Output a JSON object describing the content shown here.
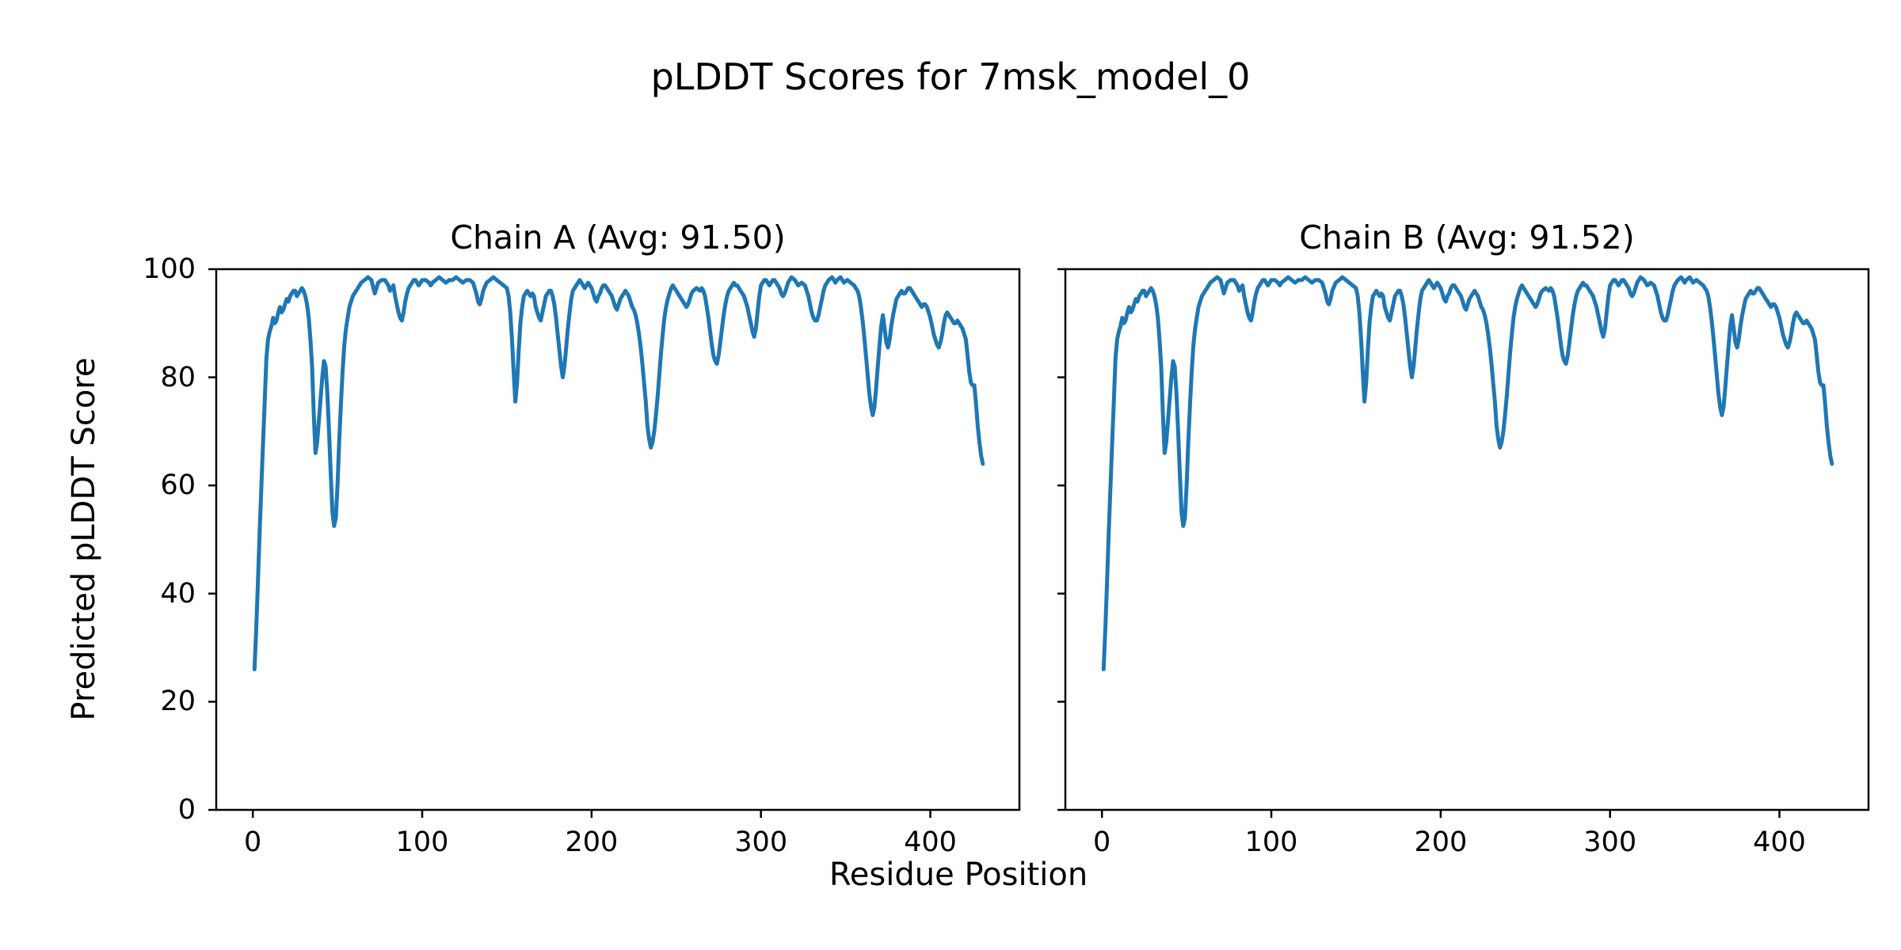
{
  "figure": {
    "title": "pLDDT Scores for 7msk_model_0",
    "xlabel": "Residue Position",
    "ylabel": "Predicted pLDDT Score",
    "background_color": "#ffffff",
    "text_color": "#000000",
    "line_color": "#1f77b4",
    "spine_color": "#000000"
  },
  "chart_data": [
    {
      "type": "line",
      "title": "Chain A (Avg: 91.50)",
      "avg": 91.5,
      "xlim": [
        -21.6,
        452.6
      ],
      "ylim": [
        0,
        100
      ],
      "xticks": [
        0,
        100,
        200,
        300,
        400
      ],
      "yticks": [
        0,
        20,
        40,
        60,
        80,
        100
      ],
      "y_tick_labels_visible": true,
      "grid": false,
      "legend": "none",
      "series_key": "plddt_trace"
    },
    {
      "type": "line",
      "title": "Chain B (Avg: 91.52)",
      "avg": 91.52,
      "xlim": [
        -21.6,
        452.6
      ],
      "ylim": [
        0,
        100
      ],
      "xticks": [
        0,
        100,
        200,
        300,
        400
      ],
      "yticks": [
        0,
        20,
        40,
        60,
        80,
        100
      ],
      "y_tick_labels_visible": false,
      "grid": false,
      "legend": "none",
      "series_key": "plddt_trace"
    }
  ],
  "plddt_trace": {
    "name": "pLDDT per residue",
    "points": [
      [
        1,
        26
      ],
      [
        2,
        33.5
      ],
      [
        3,
        42
      ],
      [
        4,
        51
      ],
      [
        5,
        59.5
      ],
      [
        6,
        67.5
      ],
      [
        7,
        75.5
      ],
      [
        8,
        83.5
      ],
      [
        9,
        87
      ],
      [
        10,
        88.5
      ],
      [
        11,
        89.5
      ],
      [
        12,
        91
      ],
      [
        13,
        90
      ],
      [
        14,
        90.5
      ],
      [
        15,
        92
      ],
      [
        16,
        93
      ],
      [
        17,
        92
      ],
      [
        18,
        92.5
      ],
      [
        19,
        93.5
      ],
      [
        20,
        94.5
      ],
      [
        21,
        94
      ],
      [
        22,
        95
      ],
      [
        23,
        95.5
      ],
      [
        24,
        96
      ],
      [
        25,
        96
      ],
      [
        26,
        95
      ],
      [
        27,
        95.5
      ],
      [
        28,
        96
      ],
      [
        29,
        96.5
      ],
      [
        30,
        96
      ],
      [
        31,
        95
      ],
      [
        32,
        93.5
      ],
      [
        33,
        91
      ],
      [
        34,
        87
      ],
      [
        35,
        82
      ],
      [
        36,
        73
      ],
      [
        37,
        66
      ],
      [
        38,
        68
      ],
      [
        39,
        72
      ],
      [
        40,
        76
      ],
      [
        41,
        80
      ],
      [
        42,
        83
      ],
      [
        43,
        82
      ],
      [
        44,
        77
      ],
      [
        45,
        70
      ],
      [
        46,
        62
      ],
      [
        47,
        55
      ],
      [
        48,
        52.5
      ],
      [
        49,
        54
      ],
      [
        50,
        60
      ],
      [
        51,
        68
      ],
      [
        52,
        75
      ],
      [
        53,
        81
      ],
      [
        54,
        86
      ],
      [
        55,
        89
      ],
      [
        56,
        91
      ],
      [
        57,
        93
      ],
      [
        58,
        94
      ],
      [
        59,
        95
      ],
      [
        60,
        95.5
      ],
      [
        62,
        96.5
      ],
      [
        64,
        97.5
      ],
      [
        66,
        98
      ],
      [
        68,
        98.5
      ],
      [
        70,
        98
      ],
      [
        72,
        95.5
      ],
      [
        73,
        96.5
      ],
      [
        74,
        97.5
      ],
      [
        76,
        98
      ],
      [
        78,
        98
      ],
      [
        80,
        97
      ],
      [
        81,
        96
      ],
      [
        82,
        96.5
      ],
      [
        83,
        97
      ],
      [
        84,
        95
      ],
      [
        85,
        93.5
      ],
      [
        86,
        92
      ],
      [
        87,
        91
      ],
      [
        88,
        90.5
      ],
      [
        89,
        92
      ],
      [
        90,
        94
      ],
      [
        91,
        95.5
      ],
      [
        92,
        96.5
      ],
      [
        93,
        97
      ],
      [
        94,
        97.5
      ],
      [
        95,
        98
      ],
      [
        96,
        98
      ],
      [
        97,
        97.5
      ],
      [
        98,
        97
      ],
      [
        99,
        97.5
      ],
      [
        100,
        98
      ],
      [
        102,
        98
      ],
      [
        104,
        97.5
      ],
      [
        105,
        97
      ],
      [
        106,
        97.5
      ],
      [
        108,
        98
      ],
      [
        110,
        98.5
      ],
      [
        112,
        98
      ],
      [
        114,
        97.5
      ],
      [
        116,
        98
      ],
      [
        118,
        98
      ],
      [
        120,
        98.5
      ],
      [
        122,
        98
      ],
      [
        124,
        97.5
      ],
      [
        126,
        98
      ],
      [
        128,
        98
      ],
      [
        130,
        97.5
      ],
      [
        132,
        95.5
      ],
      [
        133,
        94
      ],
      [
        134,
        93.5
      ],
      [
        135,
        94.5
      ],
      [
        136,
        96
      ],
      [
        138,
        97.5
      ],
      [
        140,
        98
      ],
      [
        142,
        98.5
      ],
      [
        144,
        98
      ],
      [
        146,
        97.5
      ],
      [
        148,
        97
      ],
      [
        150,
        96.5
      ],
      [
        151,
        95
      ],
      [
        152,
        92
      ],
      [
        153,
        87
      ],
      [
        154,
        81
      ],
      [
        155,
        75.5
      ],
      [
        156,
        79
      ],
      [
        157,
        85
      ],
      [
        158,
        90
      ],
      [
        159,
        93
      ],
      [
        160,
        95
      ],
      [
        161,
        95.5
      ],
      [
        162,
        96
      ],
      [
        163,
        95.5
      ],
      [
        164,
        95
      ],
      [
        165,
        95.5
      ],
      [
        166,
        95
      ],
      [
        167,
        93
      ],
      [
        168,
        92
      ],
      [
        169,
        91
      ],
      [
        170,
        90.5
      ],
      [
        171,
        92
      ],
      [
        172,
        93.5
      ],
      [
        173,
        95
      ],
      [
        174,
        95.5
      ],
      [
        175,
        96
      ],
      [
        176,
        96
      ],
      [
        177,
        95
      ],
      [
        178,
        93.5
      ],
      [
        179,
        91
      ],
      [
        180,
        88
      ],
      [
        181,
        85
      ],
      [
        182,
        82
      ],
      [
        183,
        80
      ],
      [
        184,
        82
      ],
      [
        185,
        85.5
      ],
      [
        186,
        89
      ],
      [
        187,
        92
      ],
      [
        188,
        94.5
      ],
      [
        189,
        96
      ],
      [
        190,
        96.5
      ],
      [
        191,
        97
      ],
      [
        192,
        97.5
      ],
      [
        193,
        98
      ],
      [
        194,
        97.5
      ],
      [
        195,
        97
      ],
      [
        196,
        96.5
      ],
      [
        197,
        97
      ],
      [
        198,
        97.5
      ],
      [
        199,
        97
      ],
      [
        200,
        96.5
      ],
      [
        201,
        95.5
      ],
      [
        202,
        94.5
      ],
      [
        203,
        94
      ],
      [
        204,
        95
      ],
      [
        205,
        95.5
      ],
      [
        206,
        96.5
      ],
      [
        207,
        97
      ],
      [
        208,
        97
      ],
      [
        209,
        96.5
      ],
      [
        210,
        96
      ],
      [
        211,
        95.5
      ],
      [
        212,
        95
      ],
      [
        213,
        94
      ],
      [
        214,
        93
      ],
      [
        215,
        92.5
      ],
      [
        216,
        93.5
      ],
      [
        217,
        94.5
      ],
      [
        218,
        95
      ],
      [
        219,
        95.5
      ],
      [
        220,
        96
      ],
      [
        221,
        95.5
      ],
      [
        222,
        95
      ],
      [
        223,
        94
      ],
      [
        224,
        93
      ],
      [
        225,
        92.5
      ],
      [
        226,
        91.5
      ],
      [
        227,
        90
      ],
      [
        228,
        88
      ],
      [
        229,
        85.5
      ],
      [
        230,
        82.5
      ],
      [
        231,
        79
      ],
      [
        232,
        75.5
      ],
      [
        233,
        71
      ],
      [
        234,
        68.5
      ],
      [
        235,
        67
      ],
      [
        236,
        68
      ],
      [
        237,
        70
      ],
      [
        238,
        73
      ],
      [
        239,
        76.5
      ],
      [
        240,
        80.5
      ],
      [
        241,
        84.5
      ],
      [
        242,
        88
      ],
      [
        243,
        91
      ],
      [
        244,
        93
      ],
      [
        245,
        94.5
      ],
      [
        246,
        95.5
      ],
      [
        247,
        96.5
      ],
      [
        248,
        97
      ],
      [
        249,
        96.5
      ],
      [
        250,
        96
      ],
      [
        251,
        95.5
      ],
      [
        252,
        95
      ],
      [
        253,
        94.5
      ],
      [
        254,
        94
      ],
      [
        255,
        93.5
      ],
      [
        256,
        93
      ],
      [
        257,
        93.5
      ],
      [
        258,
        94.5
      ],
      [
        259,
        95.5
      ],
      [
        260,
        96
      ],
      [
        262,
        96.5
      ],
      [
        264,
        96
      ],
      [
        265,
        96.5
      ],
      [
        266,
        96
      ],
      [
        267,
        95
      ],
      [
        268,
        93
      ],
      [
        269,
        91
      ],
      [
        270,
        88.5
      ],
      [
        271,
        86
      ],
      [
        272,
        84
      ],
      [
        273,
        83
      ],
      [
        274,
        82.5
      ],
      [
        275,
        84
      ],
      [
        276,
        86.5
      ],
      [
        277,
        89
      ],
      [
        278,
        91.5
      ],
      [
        279,
        93.5
      ],
      [
        280,
        95
      ],
      [
        281,
        96
      ],
      [
        282,
        96.5
      ],
      [
        283,
        97
      ],
      [
        284,
        97.5
      ],
      [
        285,
        97
      ],
      [
        286,
        97
      ],
      [
        287,
        96.5
      ],
      [
        288,
        96
      ],
      [
        289,
        95.5
      ],
      [
        290,
        95
      ],
      [
        291,
        94
      ],
      [
        292,
        93
      ],
      [
        293,
        91.5
      ],
      [
        294,
        90
      ],
      [
        295,
        88.5
      ],
      [
        296,
        87.5
      ],
      [
        297,
        89
      ],
      [
        298,
        92
      ],
      [
        299,
        95
      ],
      [
        300,
        97
      ],
      [
        301,
        97.5
      ],
      [
        302,
        98
      ],
      [
        303,
        98
      ],
      [
        304,
        97.5
      ],
      [
        305,
        97
      ],
      [
        306,
        97.5
      ],
      [
        307,
        98
      ],
      [
        308,
        98
      ],
      [
        309,
        97.5
      ],
      [
        310,
        97
      ],
      [
        311,
        96.5
      ],
      [
        312,
        95.5
      ],
      [
        313,
        95
      ],
      [
        314,
        95.5
      ],
      [
        315,
        96.5
      ],
      [
        316,
        97.5
      ],
      [
        317,
        98
      ],
      [
        318,
        98.5
      ],
      [
        320,
        98
      ],
      [
        321,
        97.5
      ],
      [
        322,
        97
      ],
      [
        324,
        97.5
      ],
      [
        326,
        97
      ],
      [
        327,
        96
      ],
      [
        328,
        95
      ],
      [
        329,
        93.5
      ],
      [
        330,
        92
      ],
      [
        331,
        91
      ],
      [
        332,
        90.5
      ],
      [
        333,
        90.5
      ],
      [
        334,
        91.5
      ],
      [
        335,
        93
      ],
      [
        336,
        94.5
      ],
      [
        337,
        96
      ],
      [
        338,
        97
      ],
      [
        339,
        97.5
      ],
      [
        340,
        98
      ],
      [
        342,
        98.5
      ],
      [
        344,
        97.5
      ],
      [
        345,
        98
      ],
      [
        347,
        98.5
      ],
      [
        349,
        97.5
      ],
      [
        351,
        98
      ],
      [
        353,
        97.5
      ],
      [
        355,
        97
      ],
      [
        356,
        96.5
      ],
      [
        357,
        96
      ],
      [
        358,
        95
      ],
      [
        359,
        93
      ],
      [
        360,
        90.5
      ],
      [
        361,
        87.5
      ],
      [
        362,
        84
      ],
      [
        363,
        80.5
      ],
      [
        364,
        77
      ],
      [
        365,
        74.5
      ],
      [
        366,
        73
      ],
      [
        367,
        74.5
      ],
      [
        368,
        78
      ],
      [
        369,
        82
      ],
      [
        370,
        86
      ],
      [
        371,
        89.5
      ],
      [
        372,
        91.5
      ],
      [
        373,
        89
      ],
      [
        374,
        86.5
      ],
      [
        375,
        85.5
      ],
      [
        376,
        87
      ],
      [
        377,
        89.5
      ],
      [
        378,
        91.5
      ],
      [
        379,
        93
      ],
      [
        380,
        94.5
      ],
      [
        381,
        95
      ],
      [
        382,
        95.5
      ],
      [
        383,
        96
      ],
      [
        384,
        95.5
      ],
      [
        385,
        95.5
      ],
      [
        386,
        96
      ],
      [
        387,
        96.5
      ],
      [
        388,
        96.5
      ],
      [
        389,
        96
      ],
      [
        390,
        95.5
      ],
      [
        391,
        95
      ],
      [
        392,
        94.5
      ],
      [
        393,
        94
      ],
      [
        394,
        93.5
      ],
      [
        395,
        93
      ],
      [
        396,
        93.5
      ],
      [
        397,
        93.5
      ],
      [
        398,
        93
      ],
      [
        399,
        92
      ],
      [
        400,
        91
      ],
      [
        401,
        89.5
      ],
      [
        402,
        88
      ],
      [
        403,
        87
      ],
      [
        404,
        86
      ],
      [
        405,
        85.5
      ],
      [
        406,
        86.5
      ],
      [
        407,
        88
      ],
      [
        408,
        90
      ],
      [
        409,
        91.5
      ],
      [
        410,
        92
      ],
      [
        411,
        91.5
      ],
      [
        412,
        91
      ],
      [
        413,
        90.5
      ],
      [
        414,
        90
      ],
      [
        415,
        90
      ],
      [
        416,
        90.5
      ],
      [
        417,
        90
      ],
      [
        418,
        89.5
      ],
      [
        419,
        89
      ],
      [
        420,
        88
      ],
      [
        421,
        87
      ],
      [
        422,
        84
      ],
      [
        423,
        81
      ],
      [
        424,
        79
      ],
      [
        425,
        78.5
      ],
      [
        426,
        78.5
      ],
      [
        427,
        75
      ],
      [
        428,
        71
      ],
      [
        429,
        68
      ],
      [
        430,
        65.5
      ],
      [
        431,
        64
      ]
    ]
  }
}
